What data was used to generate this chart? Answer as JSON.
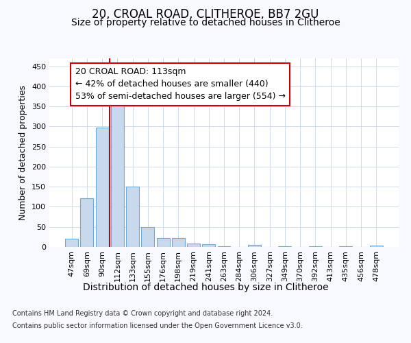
{
  "title1": "20, CROAL ROAD, CLITHEROE, BB7 2GU",
  "title2": "Size of property relative to detached houses in Clitheroe",
  "xlabel": "Distribution of detached houses by size in Clitheroe",
  "ylabel": "Number of detached properties",
  "footer1": "Contains HM Land Registry data © Crown copyright and database right 2024.",
  "footer2": "Contains public sector information licensed under the Open Government Licence v3.0.",
  "bar_labels": [
    "47sqm",
    "69sqm",
    "90sqm",
    "112sqm",
    "133sqm",
    "155sqm",
    "176sqm",
    "198sqm",
    "219sqm",
    "241sqm",
    "263sqm",
    "284sqm",
    "306sqm",
    "327sqm",
    "349sqm",
    "370sqm",
    "392sqm",
    "413sqm",
    "435sqm",
    "456sqm",
    "478sqm"
  ],
  "bar_values": [
    20,
    122,
    298,
    353,
    150,
    50,
    22,
    22,
    8,
    6,
    2,
    0,
    5,
    0,
    2,
    0,
    2,
    0,
    2,
    0,
    4
  ],
  "bar_color": "#c8d9ee",
  "bar_edge_color": "#6aaad4",
  "vline_pos": 2.5,
  "vline_color": "#cc0000",
  "ann_line1": "20 CROAL ROAD: 113sqm",
  "ann_line2": "← 42% of detached houses are smaller (440)",
  "ann_line3": "53% of semi-detached houses are larger (554) →",
  "ylim": [
    0,
    470
  ],
  "yticks": [
    0,
    50,
    100,
    150,
    200,
    250,
    300,
    350,
    400,
    450
  ],
  "fig_bg_color": "#f8f8ff",
  "plot_bg": "#ffffff",
  "grid_color": "#c8d4e8",
  "title1_fontsize": 12,
  "title2_fontsize": 10,
  "ylabel_fontsize": 9,
  "xlabel_fontsize": 10,
  "tick_fontsize": 8,
  "ann_fontsize": 9,
  "footer_fontsize": 7
}
